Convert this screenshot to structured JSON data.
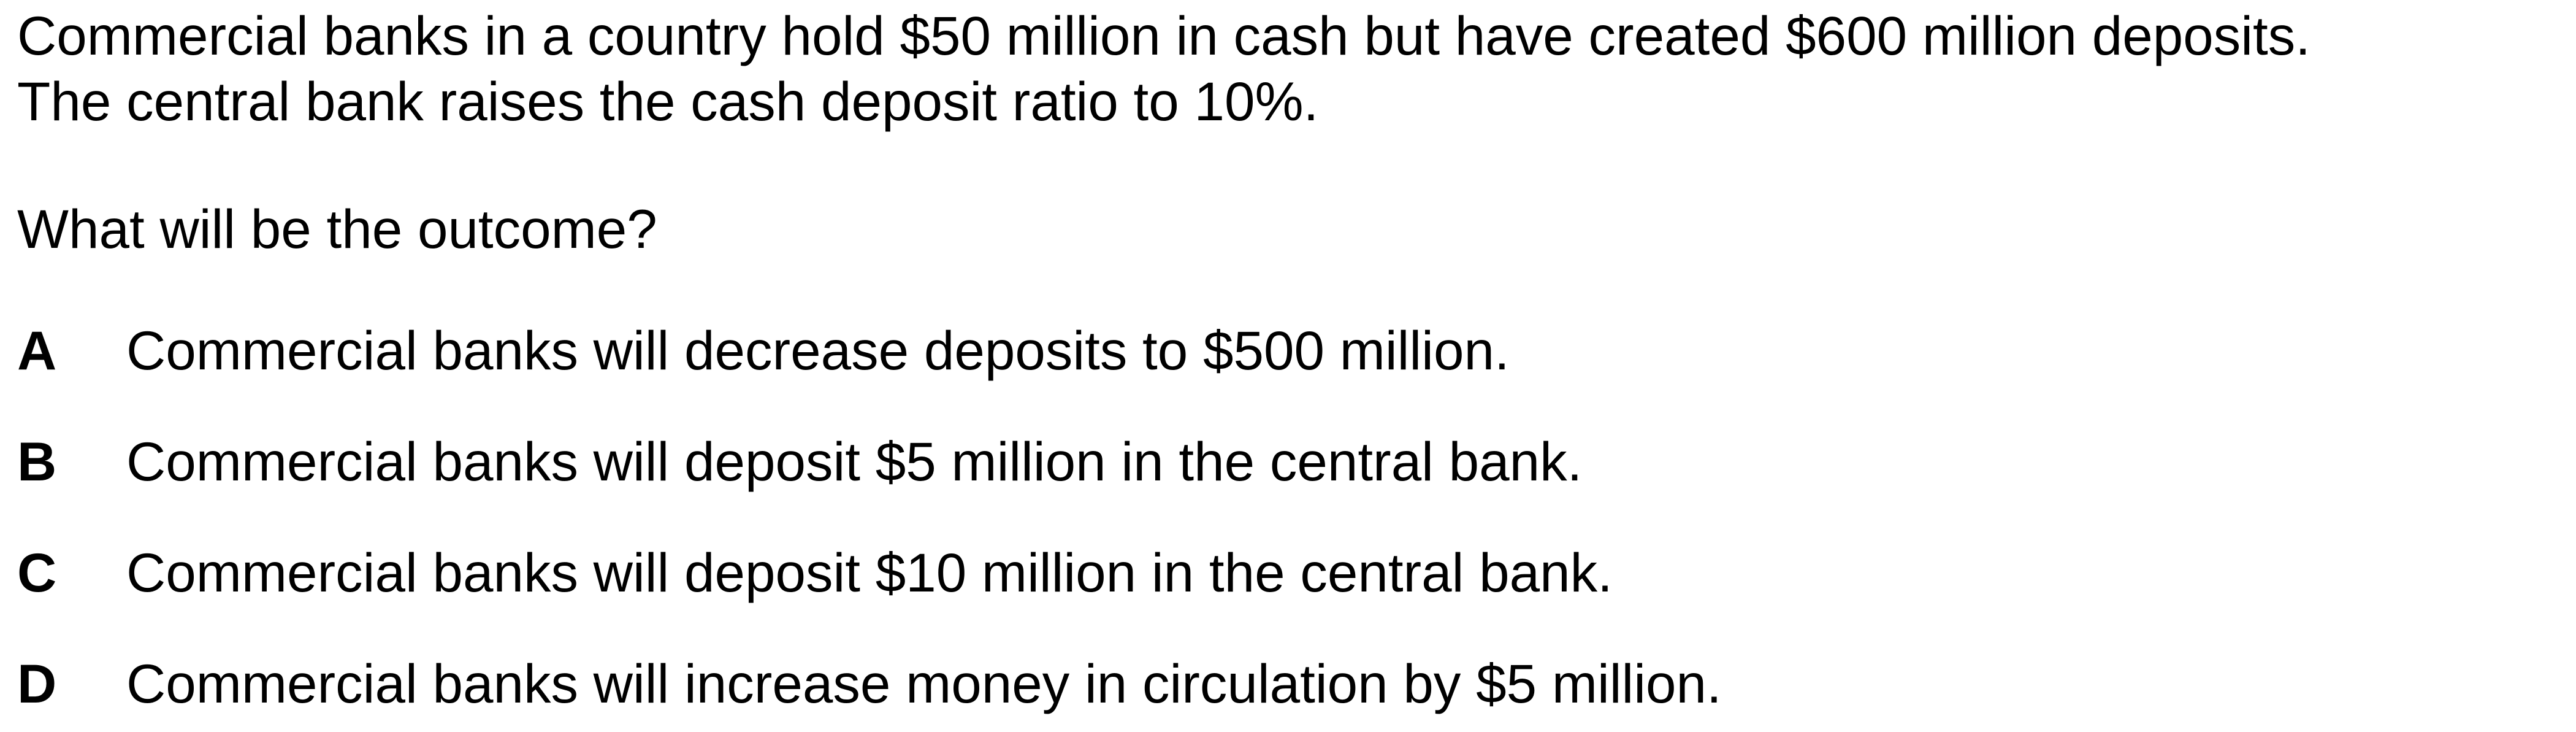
{
  "question": {
    "stem_line_1": "Commercial banks in a country hold $50 million in cash but have created $600 million deposits.",
    "stem_line_2": "The central bank raises the cash deposit ratio to 10%.",
    "prompt": "What will be the outcome?"
  },
  "options": [
    {
      "letter": "A",
      "text": "Commercial banks will decrease deposits to $500 million."
    },
    {
      "letter": "B",
      "text": "Commercial banks will deposit $5 million in the central bank."
    },
    {
      "letter": "C",
      "text": "Commercial banks will deposit $10 million in the central bank."
    },
    {
      "letter": "D",
      "text": "Commercial banks will increase money in circulation by $5 million."
    }
  ]
}
